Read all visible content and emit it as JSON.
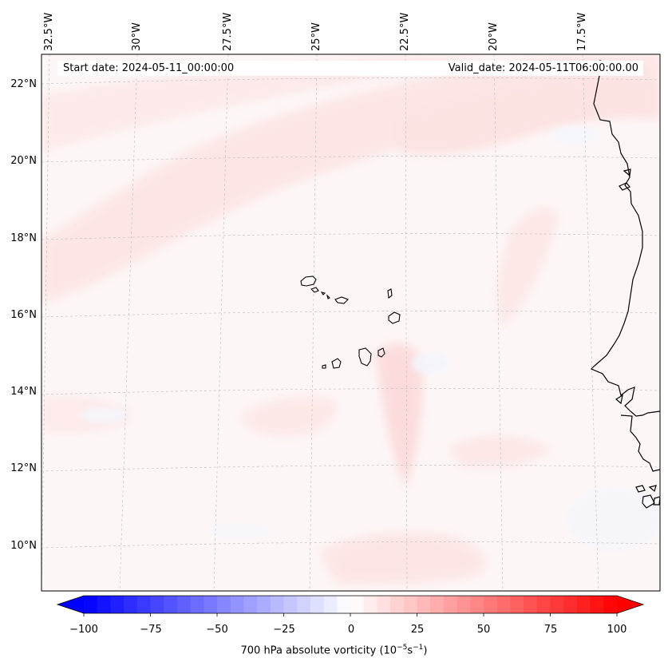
{
  "header": {
    "start_date": "Start date: 2024-05-11_00:00:00",
    "valid_date": "Valid_date: 2024-05-11T06:00:00.00"
  },
  "map": {
    "lon_labels": [
      "32.5°W",
      "30°W",
      "27.5°W",
      "25°W",
      "22.5°W",
      "20°W",
      "17.5°W"
    ],
    "lat_labels": [
      "22°N",
      "20°N",
      "18°N",
      "16°N",
      "14°N",
      "12°N",
      "10°N"
    ],
    "gridlines": true,
    "field_background": "#fdf5f5",
    "land_outline_color": "#000000"
  },
  "colorbar": {
    "title": "700 hPa absolute vorticity (10",
    "title_exp": "−5",
    "title_unit": "s",
    "title_unit_exp": "−1",
    "title_close": ")",
    "ticks": [
      "−100",
      "−75",
      "−50",
      "−25",
      "0",
      "25",
      "50",
      "75",
      "100"
    ],
    "range": [
      -100,
      100
    ],
    "cmap": "bwr",
    "extend": "both",
    "low_color": "#0000ff",
    "mid_color": "#ffffff",
    "high_color": "#ff0000"
  }
}
